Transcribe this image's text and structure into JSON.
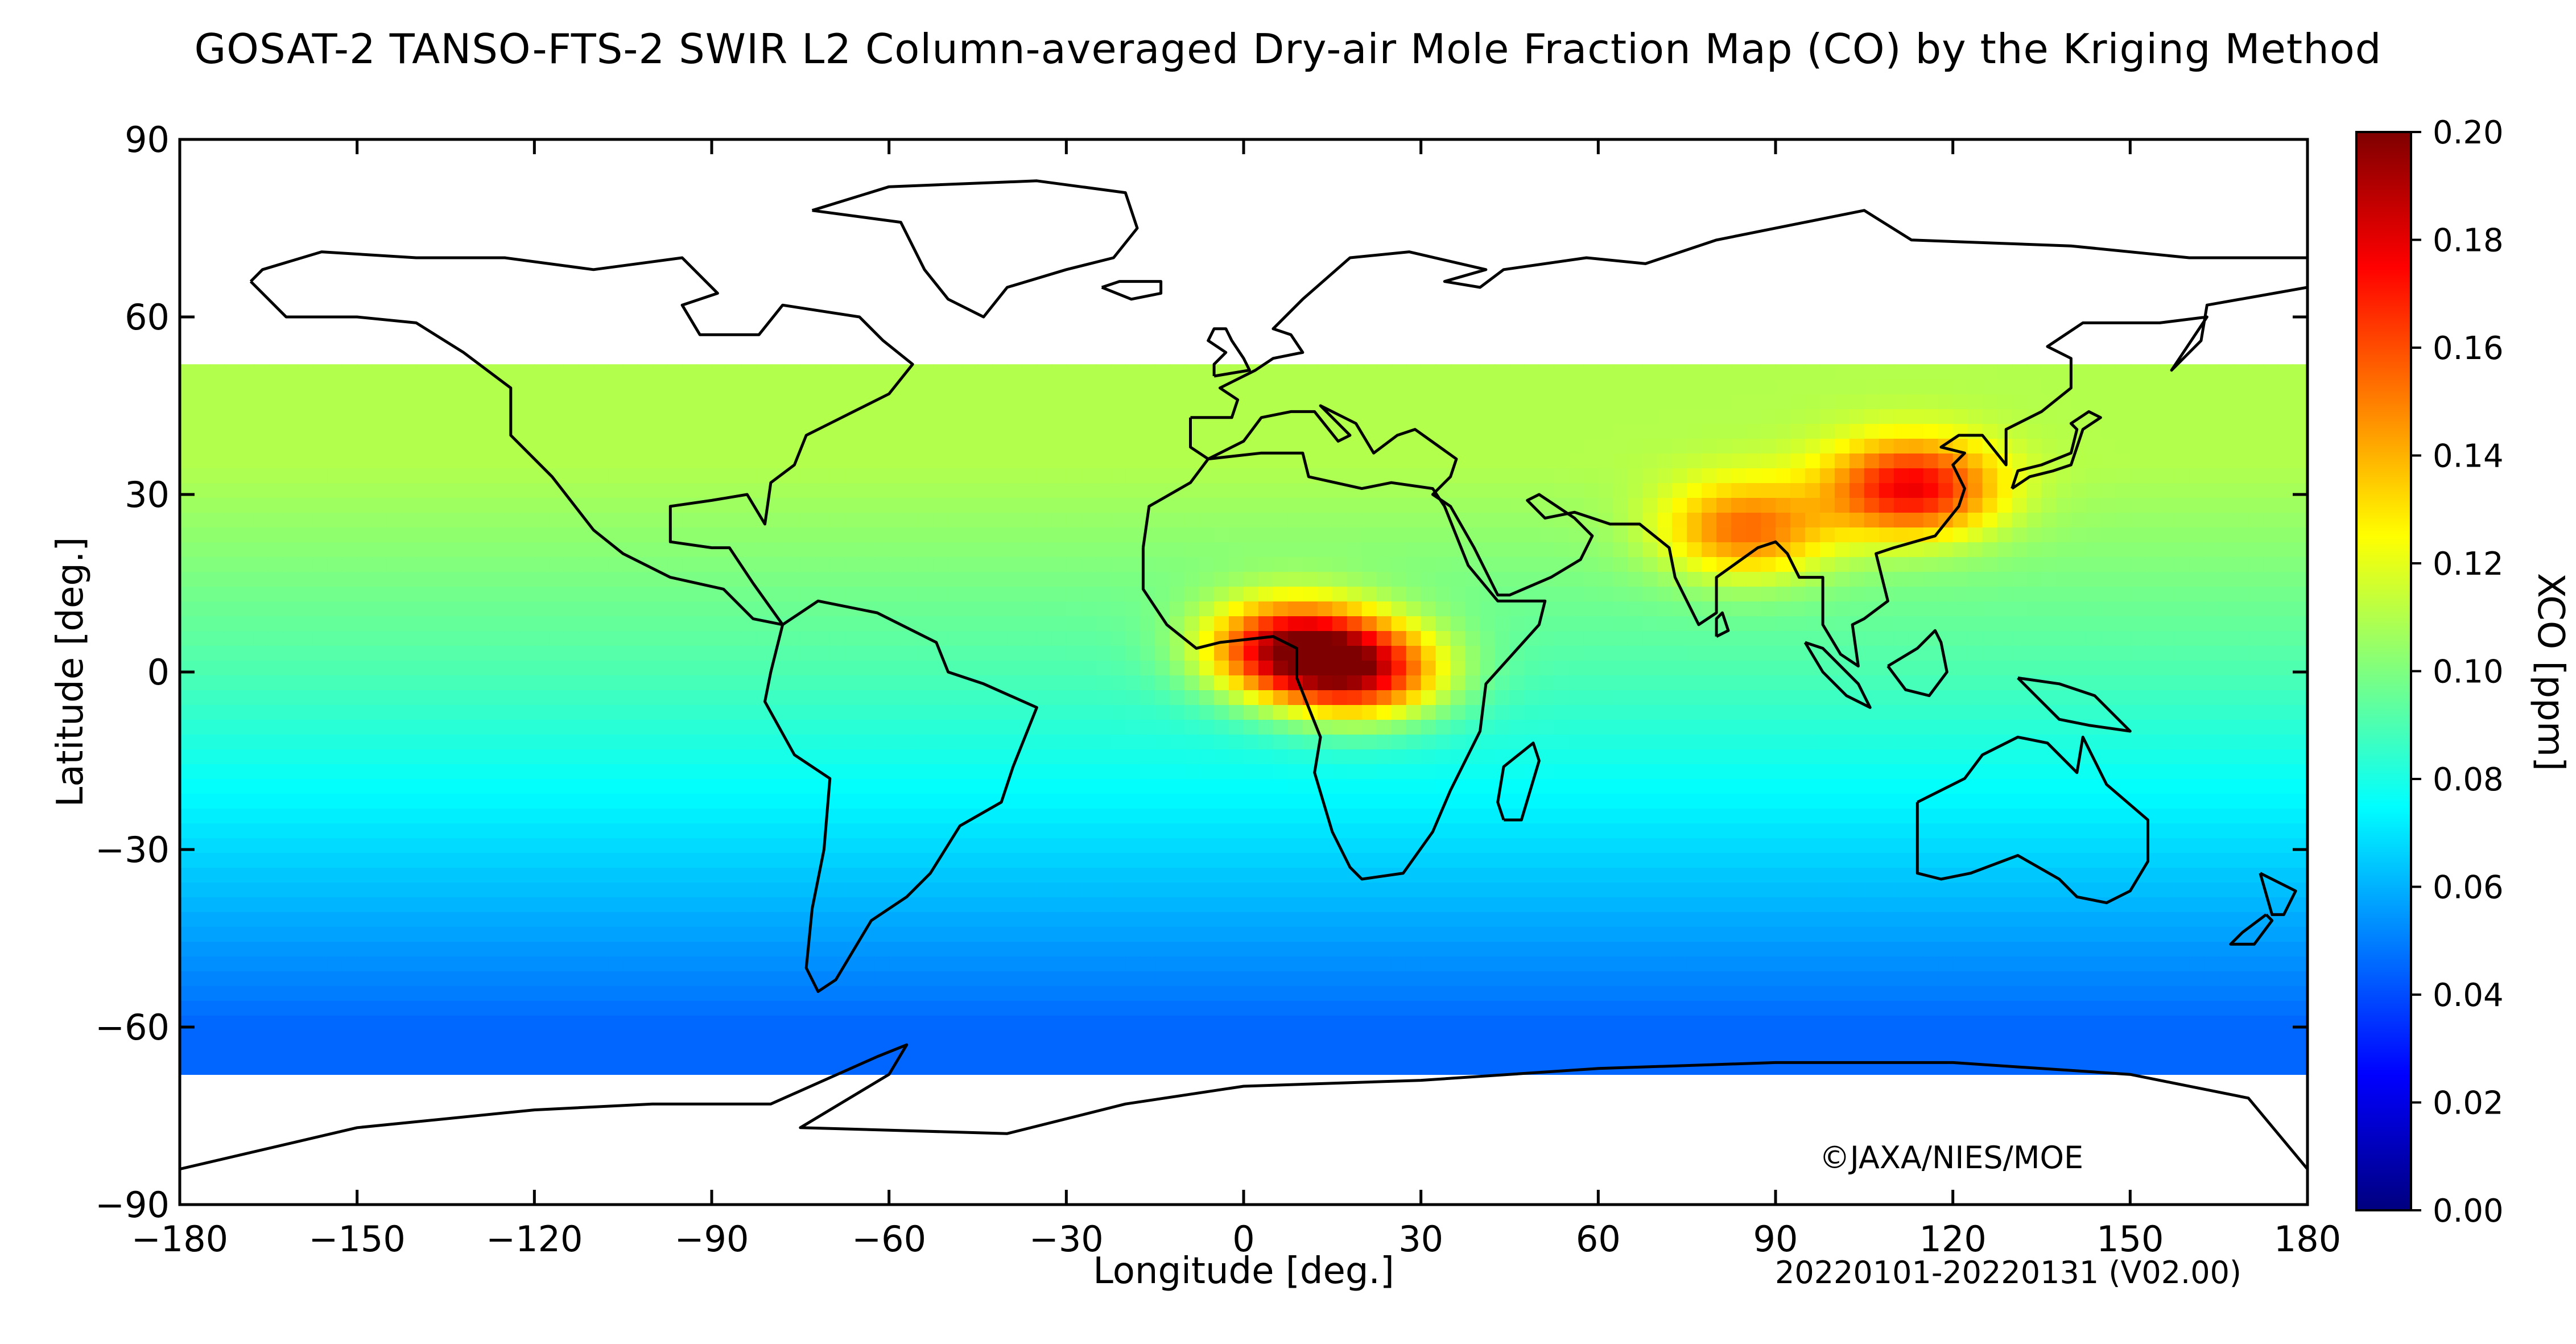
{
  "title": "GOSAT-2 TANSO-FTS-2 SWIR L2 Column-averaged Dry-air Mole Fraction Map (CO) by the Kriging Method",
  "xlabel": "Longitude [deg.]",
  "ylabel": "Latitude [deg.]",
  "colorbar_label": "XCO [ppm]",
  "copyright": "©JAXA/NIES/MOE",
  "period": "20220101-20220131 (V02.00)",
  "x_ticks": [
    "−180",
    "−150",
    "−120",
    "−90",
    "−60",
    "−30",
    "0",
    "30",
    "60",
    "90",
    "120",
    "150",
    "180"
  ],
  "y_ticks": [
    "90",
    "60",
    "30",
    "0",
    "−30",
    "−60",
    "−90"
  ],
  "colorbar_ticks": [
    "0.20",
    "0.18",
    "0.16",
    "0.14",
    "0.12",
    "0.10",
    "0.08",
    "0.06",
    "0.04",
    "0.02",
    "0.00"
  ],
  "colormap": [
    "#00007f",
    "#0000ff",
    "#007fff",
    "#00ffff",
    "#7fff7f",
    "#ffff00",
    "#ff7f00",
    "#ff0000",
    "#7f0000"
  ],
  "chart_data": {
    "type": "heatmap",
    "projection": "equirectangular",
    "xlim": [
      -180,
      180
    ],
    "ylim": [
      -90,
      90
    ],
    "value_range": [
      0.0,
      0.2
    ],
    "grid_cell_deg": 2.5,
    "data_lat_extent": [
      -68,
      52
    ],
    "hotspots": [
      {
        "region": "Central Africa",
        "lon": 8,
        "lat": 4,
        "value": 0.18
      },
      {
        "region": "Central Africa (Congo)",
        "lon": 20,
        "lat": 0,
        "value": 0.17
      },
      {
        "region": "East China",
        "lon": 113,
        "lat": 31,
        "value": 0.16
      },
      {
        "region": "Gangetic Plain",
        "lon": 85,
        "lat": 24,
        "value": 0.14
      }
    ],
    "regional_values": [
      {
        "region": "Tropics (background)",
        "value": 0.09
      },
      {
        "region": "Northern mid-latitudes",
        "value": 0.11
      },
      {
        "region": "Southern mid-latitudes",
        "value": 0.06
      },
      {
        "region": "Southern Ocean (~60S)",
        "value": 0.045
      }
    ]
  }
}
